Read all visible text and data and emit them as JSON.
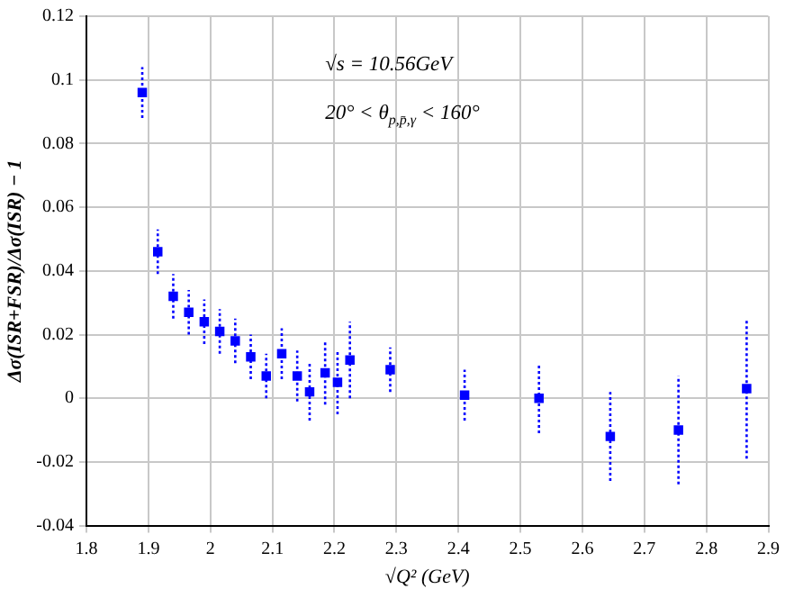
{
  "chart_data": {
    "type": "scatter",
    "xlabel": "√Q² (GeV)",
    "ylabel": "Δσ(ISR+FSR)/Δσ(ISR) − 1",
    "annotations": [
      "√s = 10.56GeV",
      "20° < θ$_{p,p̄,γ}$ < 160°"
    ],
    "x": [
      1.89,
      1.915,
      1.94,
      1.965,
      1.99,
      2.015,
      2.04,
      2.065,
      2.09,
      2.115,
      2.14,
      2.16,
      2.185,
      2.205,
      2.225,
      2.29,
      2.41,
      2.53,
      2.645,
      2.755,
      2.865
    ],
    "series": [
      {
        "color": "#0000ff",
        "values": [
          0.096,
          0.046,
          0.032,
          0.027,
          0.024,
          0.021,
          0.018,
          0.013,
          0.007,
          0.014,
          0.007,
          0.002,
          0.008,
          0.005,
          0.012,
          0.009,
          0.001,
          0.0,
          -0.012,
          -0.01,
          0.003
        ],
        "errors": [
          0.008,
          0.007,
          0.007,
          0.007,
          0.007,
          0.007,
          0.007,
          0.007,
          0.007,
          0.008,
          0.008,
          0.009,
          0.01,
          0.01,
          0.012,
          0.007,
          0.008,
          0.011,
          0.014,
          0.017,
          0.022
        ]
      }
    ],
    "xlim": [
      1.8,
      2.9
    ],
    "xticks": [
      1.8,
      1.9,
      2,
      2.1,
      2.2,
      2.3,
      2.4,
      2.5,
      2.6,
      2.7,
      2.8,
      2.9
    ],
    "ylim": [
      -0.04,
      0.12
    ],
    "yticks": [
      -0.04,
      -0.02,
      0,
      0.02,
      0.04,
      0.06,
      0.08,
      0.1,
      0.12
    ],
    "grid": true,
    "legend": false,
    "marker": "square",
    "line_style": "dotted"
  }
}
